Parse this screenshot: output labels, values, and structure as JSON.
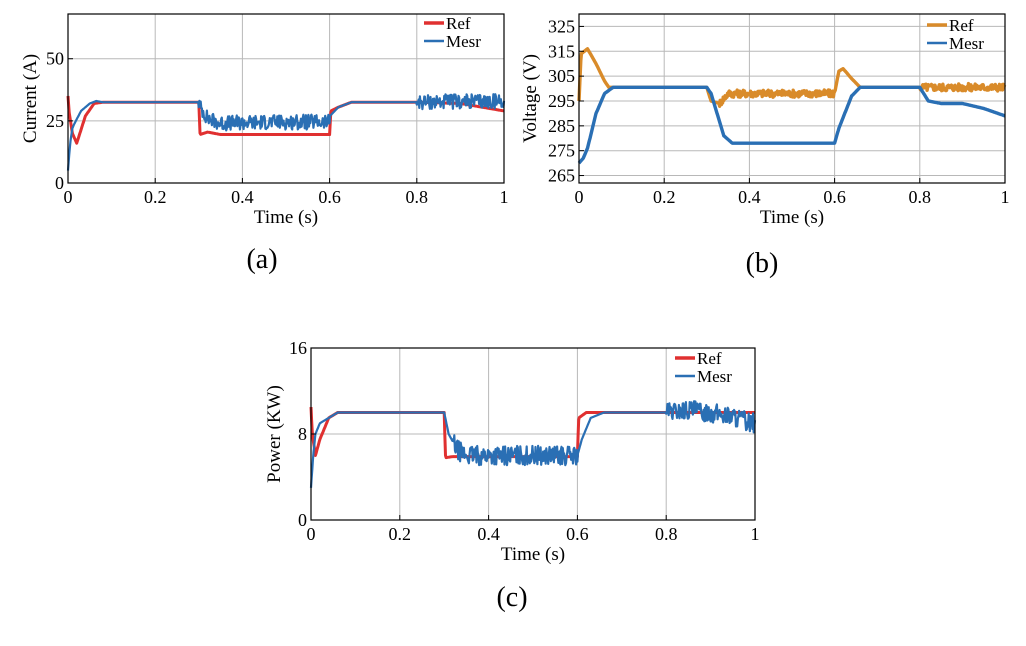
{
  "chart_data": [
    {
      "type": "line",
      "caption": "(a)",
      "xlabel": "Time (s)",
      "ylabel": "Current (A)",
      "xlim": [
        0,
        1
      ],
      "ylim": [
        0,
        68
      ],
      "xticks": [
        0,
        0.2,
        0.4,
        0.6,
        0.8,
        1
      ],
      "xtick_labels": [
        "0",
        "0.2",
        "0.4",
        "0.6",
        "0.8",
        "1"
      ],
      "yticks": [
        0,
        25,
        50
      ],
      "ytick_labels": [
        "0",
        "25",
        "50"
      ],
      "grid": true,
      "legend": "top-right",
      "series": [
        {
          "name": "Ref",
          "color": "#e03030",
          "x": [
            0,
            0.003,
            0.01,
            0.02,
            0.04,
            0.06,
            0.08,
            0.1,
            0.3,
            0.303,
            0.32,
            0.35,
            0.6,
            0.603,
            0.62,
            0.65,
            0.8,
            0.9,
            1.0
          ],
          "y": [
            35,
            28,
            20,
            16,
            27,
            32,
            32.5,
            32.5,
            32.5,
            19.5,
            20.5,
            19.5,
            19.5,
            29,
            30.5,
            32.5,
            32.5,
            32,
            29
          ]
        },
        {
          "name": "Mesr",
          "color": "#2a6fb4",
          "x": [
            0,
            0.005,
            0.01,
            0.015,
            0.03,
            0.05,
            0.065,
            0.08,
            0.1,
            0.3,
            0.302,
            0.32,
            0.35,
            0.45,
            0.6,
            0.601,
            0.62,
            0.65,
            0.8,
            1.0
          ],
          "y": [
            5,
            16,
            22,
            24,
            29,
            32,
            33,
            32.5,
            32.5,
            32.5,
            31,
            26,
            24,
            24.5,
            24.5,
            27,
            30.5,
            32.5,
            32.5,
            33
          ],
          "noise": [
            {
              "from": 0.3,
              "to": 0.6,
              "amplitude": 6
            },
            {
              "from": 0.8,
              "to": 1.0,
              "amplitude": 6
            }
          ]
        }
      ]
    },
    {
      "type": "line",
      "caption": "(b)",
      "xlabel": "Time (s)",
      "ylabel": "Voltage (V)",
      "xlim": [
        0,
        1
      ],
      "ylim": [
        262,
        330
      ],
      "xticks": [
        0,
        0.2,
        0.4,
        0.6,
        0.8,
        1
      ],
      "xtick_labels": [
        "0",
        "0.2",
        "0.4",
        "0.6",
        "0.8",
        "1"
      ],
      "yticks": [
        265,
        275,
        285,
        295,
        305,
        315,
        325
      ],
      "ytick_labels": [
        "265",
        "275",
        "285",
        "295",
        "305",
        "315",
        "325"
      ],
      "grid": true,
      "legend": "top-right",
      "series": [
        {
          "name": "Ref",
          "color": "#d98b2a",
          "x": [
            0,
            0.005,
            0.02,
            0.04,
            0.06,
            0.07,
            0.3,
            0.31,
            0.33,
            0.35,
            0.6,
            0.61,
            0.62,
            0.64,
            0.66,
            0.8,
            1.0
          ],
          "y": [
            295,
            314,
            316,
            310,
            303,
            300.5,
            300.5,
            295,
            294,
            298,
            298,
            307,
            308,
            304,
            300.5,
            300.5,
            300.5
          ],
          "noise": [
            {
              "from": 0.33,
              "to": 0.6,
              "amplitude": 3
            },
            {
              "from": 0.8,
              "to": 1.0,
              "amplitude": 3
            }
          ]
        },
        {
          "name": "Mesr",
          "color": "#2a6fb4",
          "x": [
            0,
            0.01,
            0.02,
            0.04,
            0.06,
            0.08,
            0.3,
            0.31,
            0.34,
            0.36,
            0.6,
            0.61,
            0.64,
            0.66,
            0.8,
            0.82,
            0.85,
            0.9,
            0.95,
            1.0
          ],
          "y": [
            270,
            272,
            276,
            290,
            298,
            300.5,
            300.5,
            298,
            281,
            278,
            278,
            284,
            297,
            300.5,
            300.5,
            295,
            294,
            294,
            292,
            289
          ]
        }
      ]
    },
    {
      "type": "line",
      "caption": "(c)",
      "xlabel": "Time (s)",
      "ylabel": "Power (KW)",
      "xlim": [
        0,
        1
      ],
      "ylim": [
        0,
        16
      ],
      "xticks": [
        0,
        0.2,
        0.4,
        0.6,
        0.8,
        1
      ],
      "xtick_labels": [
        "0",
        "0.2",
        "0.4",
        "0.6",
        "0.8",
        "1"
      ],
      "yticks": [
        0,
        8,
        16
      ],
      "ytick_labels": [
        "0",
        "8",
        "16"
      ],
      "grid": true,
      "legend": "top-right",
      "series": [
        {
          "name": "Ref",
          "color": "#e03030",
          "x": [
            0,
            0.003,
            0.01,
            0.02,
            0.04,
            0.06,
            0.08,
            0.3,
            0.303,
            0.32,
            0.6,
            0.603,
            0.62,
            0.65,
            0.8,
            1.0
          ],
          "y": [
            10.5,
            8,
            6,
            7.5,
            9.5,
            10,
            10,
            10,
            5.8,
            5.9,
            5.9,
            9.5,
            10,
            10,
            10,
            10
          ]
        },
        {
          "name": "Mesr",
          "color": "#2a6fb4",
          "x": [
            0,
            0.005,
            0.01,
            0.02,
            0.04,
            0.06,
            0.08,
            0.3,
            0.31,
            0.33,
            0.35,
            0.6,
            0.61,
            0.63,
            0.66,
            0.8,
            0.85,
            0.9,
            0.95,
            1.0
          ],
          "y": [
            3,
            6,
            8,
            9,
            9.5,
            10,
            10,
            10,
            8,
            6.5,
            6,
            6,
            7.5,
            9.5,
            10,
            10,
            10.2,
            10,
            9.6,
            9
          ],
          "noise": [
            {
              "from": 0.32,
              "to": 0.6,
              "amplitude": 1.8
            },
            {
              "from": 0.8,
              "to": 1.0,
              "amplitude": 1.8
            }
          ]
        }
      ]
    }
  ]
}
